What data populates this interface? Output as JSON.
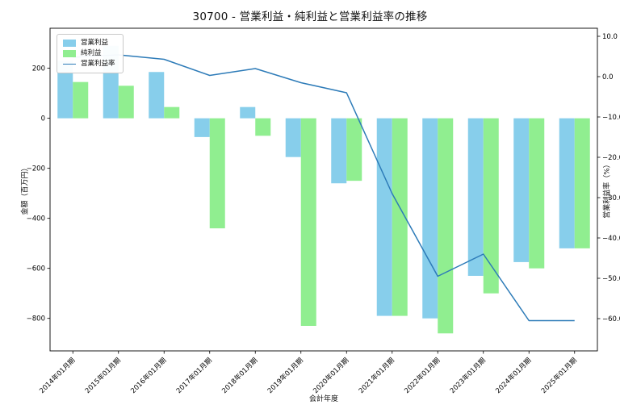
{
  "title": "30700 - 営業利益・純利益と営業利益率の推移",
  "chart_data": {
    "type": "bar",
    "title": "30700 - 営業利益・純利益と営業利益率の推移",
    "xlabel": "会計年度",
    "ylabel_left": "金額（百万円）",
    "ylabel_right": "営業利益率（%）",
    "categories": [
      "2014年01月期",
      "2015年01月期",
      "2016年01月期",
      "2017年01月期",
      "2018年01月期",
      "2019年01月期",
      "2020年01月期",
      "2021年01月期",
      "2022年01月期",
      "2023年01月期",
      "2024年01月期",
      "2025年01月期"
    ],
    "series": [
      {
        "name": "営業利益",
        "type": "bar",
        "axis": "left",
        "color": "#87CEEB",
        "values": [
          230,
          290,
          185,
          -75,
          45,
          -155,
          -260,
          -790,
          -800,
          -630,
          -575,
          -520
        ]
      },
      {
        "name": "純利益",
        "type": "bar",
        "axis": "left",
        "color": "#90EE90",
        "values": [
          145,
          130,
          45,
          -440,
          -70,
          -830,
          -250,
          -790,
          -860,
          -700,
          -600,
          -520
        ]
      },
      {
        "name": "営業利益率",
        "type": "line",
        "axis": "right",
        "color": "#2d7bb8",
        "values": [
          4.8,
          5.4,
          4.3,
          0.3,
          2.0,
          -1.5,
          -4.0,
          -29.0,
          -49.5,
          -44.0,
          -60.5,
          -60.5
        ]
      }
    ],
    "ylim_left": [
      -930,
      360
    ],
    "yticks_left": [
      200,
      0,
      -200,
      -400,
      -600,
      -800
    ],
    "ylim_right": [
      -68,
      12
    ],
    "yticks_right": [
      10,
      0,
      -10,
      -20,
      -30,
      -40,
      -50,
      -60
    ],
    "legend_position": "upper left",
    "grid": false
  }
}
